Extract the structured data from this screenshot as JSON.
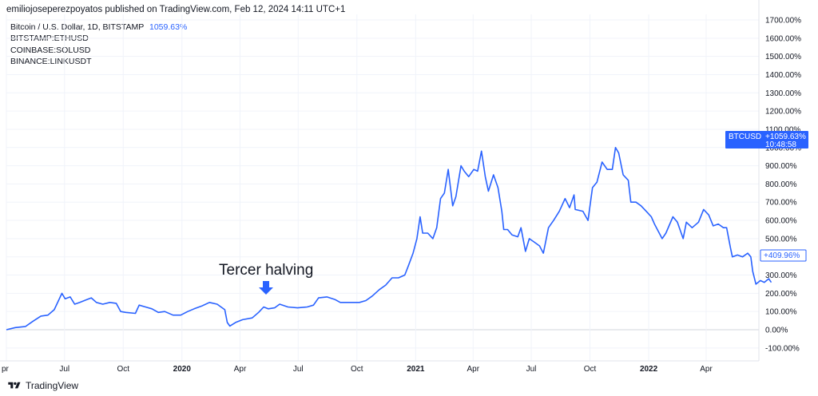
{
  "header": {
    "publisher_line": "emiliojoseperezpoyatos published on TradingView.com, Feb 12, 2024 14:11 UTC+1"
  },
  "legend": {
    "main_symbol": "Bitcoin / U.S. Dollar, 1D, BITSTAMP",
    "main_value": "1059.63%",
    "symbols": [
      "BITSTAMP:ETHUSD",
      "COINBASE:SOLUSD",
      "BINANCE:LINKUSDT"
    ]
  },
  "annotation": {
    "text": "Tercer halving"
  },
  "footer": {
    "brand": "TradingView"
  },
  "colors": {
    "line": "#2962ff",
    "grid": "#f0f3fa",
    "text": "#131722",
    "zero_line": "#d1d4dc"
  },
  "price_tags": {
    "main": {
      "symbol": "BTCUSD",
      "value": "+1059.63%",
      "countdown": "10:48:58"
    },
    "secondary": {
      "value": "+409.96%"
    }
  },
  "chart_data": {
    "type": "line",
    "ylabel_unit": "%",
    "ylim": [
      -100,
      1700
    ],
    "y_ticks": [
      1700,
      1600,
      1500,
      1400,
      1300,
      1200,
      1100,
      1000,
      900,
      800,
      700,
      600,
      500,
      400,
      300,
      200,
      100,
      0,
      -100
    ],
    "y_tick_labels": [
      "1700.00%",
      "1600.00%",
      "1500.00%",
      "1400.00%",
      "1300.00%",
      "1200.00%",
      "1100.00%",
      "1000.00%",
      "900.00%",
      "800.00%",
      "700.00%",
      "600.00%",
      "500.00%",
      "400.00%",
      "300.00%",
      "200.00%",
      "100.00%",
      "0.00%",
      "-100.00%"
    ],
    "x_ticks": [
      {
        "label": "pr",
        "date": "2019-04-01",
        "year": false
      },
      {
        "label": "Jul",
        "date": "2019-07-01",
        "year": false
      },
      {
        "label": "Oct",
        "date": "2019-10-01",
        "year": false
      },
      {
        "label": "2020",
        "date": "2020-01-01",
        "year": true
      },
      {
        "label": "Apr",
        "date": "2020-04-01",
        "year": false
      },
      {
        "label": "Jul",
        "date": "2020-07-01",
        "year": false
      },
      {
        "label": "Oct",
        "date": "2020-10-01",
        "year": false
      },
      {
        "label": "2021",
        "date": "2021-01-01",
        "year": true
      },
      {
        "label": "Apr",
        "date": "2021-04-01",
        "year": false
      },
      {
        "label": "Jul",
        "date": "2021-07-01",
        "year": false
      },
      {
        "label": "Oct",
        "date": "2021-10-01",
        "year": false
      },
      {
        "label": "2022",
        "date": "2022-01-01",
        "year": true
      },
      {
        "label": "Apr",
        "date": "2022-04-01",
        "year": false
      }
    ],
    "x_range": [
      "2019-04-01",
      "2022-07-15"
    ],
    "grid": true,
    "series": [
      {
        "name": "BTCUSD",
        "color": "#2962ff",
        "points": [
          [
            "2019-04-01",
            0
          ],
          [
            "2019-04-15",
            12
          ],
          [
            "2019-05-01",
            18
          ],
          [
            "2019-05-12",
            45
          ],
          [
            "2019-05-25",
            75
          ],
          [
            "2019-06-05",
            80
          ],
          [
            "2019-06-15",
            110
          ],
          [
            "2019-06-27",
            200
          ],
          [
            "2019-07-02",
            170
          ],
          [
            "2019-07-10",
            180
          ],
          [
            "2019-07-17",
            140
          ],
          [
            "2019-07-25",
            150
          ],
          [
            "2019-08-05",
            165
          ],
          [
            "2019-08-12",
            175
          ],
          [
            "2019-08-20",
            150
          ],
          [
            "2019-08-30",
            140
          ],
          [
            "2019-09-10",
            150
          ],
          [
            "2019-09-20",
            145
          ],
          [
            "2019-09-27",
            100
          ],
          [
            "2019-10-05",
            95
          ],
          [
            "2019-10-20",
            90
          ],
          [
            "2019-10-26",
            135
          ],
          [
            "2019-11-05",
            125
          ],
          [
            "2019-11-15",
            115
          ],
          [
            "2019-11-25",
            95
          ],
          [
            "2019-12-05",
            100
          ],
          [
            "2019-12-18",
            80
          ],
          [
            "2019-12-30",
            80
          ],
          [
            "2020-01-10",
            100
          ],
          [
            "2020-01-20",
            115
          ],
          [
            "2020-02-01",
            130
          ],
          [
            "2020-02-13",
            150
          ],
          [
            "2020-02-25",
            140
          ],
          [
            "2020-03-08",
            110
          ],
          [
            "2020-03-12",
            40
          ],
          [
            "2020-03-16",
            20
          ],
          [
            "2020-03-25",
            40
          ],
          [
            "2020-04-05",
            55
          ],
          [
            "2020-04-20",
            65
          ],
          [
            "2020-04-30",
            95
          ],
          [
            "2020-05-08",
            125
          ],
          [
            "2020-05-15",
            115
          ],
          [
            "2020-05-25",
            120
          ],
          [
            "2020-06-02",
            140
          ],
          [
            "2020-06-15",
            125
          ],
          [
            "2020-06-30",
            120
          ],
          [
            "2020-07-15",
            125
          ],
          [
            "2020-07-25",
            135
          ],
          [
            "2020-08-02",
            175
          ],
          [
            "2020-08-15",
            180
          ],
          [
            "2020-08-28",
            165
          ],
          [
            "2020-09-05",
            150
          ],
          [
            "2020-09-20",
            150
          ],
          [
            "2020-10-05",
            150
          ],
          [
            "2020-10-15",
            160
          ],
          [
            "2020-10-25",
            185
          ],
          [
            "2020-11-05",
            220
          ],
          [
            "2020-11-15",
            245
          ],
          [
            "2020-11-25",
            285
          ],
          [
            "2020-12-05",
            285
          ],
          [
            "2020-12-15",
            300
          ],
          [
            "2020-12-20",
            345
          ],
          [
            "2020-12-28",
            420
          ],
          [
            "2021-01-03",
            500
          ],
          [
            "2021-01-08",
            620
          ],
          [
            "2021-01-12",
            530
          ],
          [
            "2021-01-20",
            530
          ],
          [
            "2021-01-28",
            500
          ],
          [
            "2021-02-03",
            560
          ],
          [
            "2021-02-09",
            720
          ],
          [
            "2021-02-15",
            750
          ],
          [
            "2021-02-21",
            880
          ],
          [
            "2021-02-28",
            680
          ],
          [
            "2021-03-05",
            730
          ],
          [
            "2021-03-13",
            900
          ],
          [
            "2021-03-18",
            870
          ],
          [
            "2021-03-25",
            840
          ],
          [
            "2021-04-02",
            880
          ],
          [
            "2021-04-08",
            870
          ],
          [
            "2021-04-14",
            980
          ],
          [
            "2021-04-20",
            840
          ],
          [
            "2021-04-25",
            760
          ],
          [
            "2021-05-03",
            850
          ],
          [
            "2021-05-10",
            780
          ],
          [
            "2021-05-16",
            650
          ],
          [
            "2021-05-19",
            550
          ],
          [
            "2021-05-25",
            550
          ],
          [
            "2021-06-01",
            520
          ],
          [
            "2021-06-10",
            510
          ],
          [
            "2021-06-15",
            560
          ],
          [
            "2021-06-22",
            430
          ],
          [
            "2021-06-28",
            500
          ],
          [
            "2021-07-06",
            480
          ],
          [
            "2021-07-14",
            460
          ],
          [
            "2021-07-20",
            420
          ],
          [
            "2021-07-28",
            560
          ],
          [
            "2021-08-05",
            600
          ],
          [
            "2021-08-14",
            650
          ],
          [
            "2021-08-23",
            720
          ],
          [
            "2021-08-30",
            670
          ],
          [
            "2021-09-06",
            740
          ],
          [
            "2021-09-08",
            660
          ],
          [
            "2021-09-20",
            650
          ],
          [
            "2021-09-28",
            600
          ],
          [
            "2021-10-05",
            780
          ],
          [
            "2021-10-12",
            810
          ],
          [
            "2021-10-20",
            920
          ],
          [
            "2021-10-28",
            880
          ],
          [
            "2021-11-05",
            880
          ],
          [
            "2021-11-10",
            1000
          ],
          [
            "2021-11-15",
            970
          ],
          [
            "2021-11-22",
            850
          ],
          [
            "2021-11-30",
            820
          ],
          [
            "2021-12-04",
            700
          ],
          [
            "2021-12-12",
            700
          ],
          [
            "2021-12-20",
            680
          ],
          [
            "2021-12-28",
            650
          ],
          [
            "2022-01-05",
            620
          ],
          [
            "2022-01-10",
            580
          ],
          [
            "2022-01-22",
            500
          ],
          [
            "2022-01-28",
            530
          ],
          [
            "2022-02-08",
            620
          ],
          [
            "2022-02-15",
            590
          ],
          [
            "2022-02-24",
            500
          ],
          [
            "2022-03-01",
            590
          ],
          [
            "2022-03-10",
            560
          ],
          [
            "2022-03-20",
            590
          ],
          [
            "2022-03-28",
            660
          ],
          [
            "2022-04-05",
            630
          ],
          [
            "2022-04-12",
            570
          ],
          [
            "2022-04-20",
            580
          ],
          [
            "2022-04-28",
            560
          ],
          [
            "2022-05-03",
            560
          ],
          [
            "2022-05-09",
            450
          ],
          [
            "2022-05-12",
            400
          ],
          [
            "2022-05-20",
            410
          ],
          [
            "2022-05-28",
            400
          ],
          [
            "2022-06-05",
            420
          ],
          [
            "2022-06-10",
            400
          ],
          [
            "2022-06-13",
            320
          ],
          [
            "2022-06-18",
            250
          ],
          [
            "2022-06-25",
            270
          ],
          [
            "2022-07-01",
            260
          ],
          [
            "2022-07-08",
            280
          ],
          [
            "2022-07-12",
            260
          ]
        ]
      }
    ]
  }
}
